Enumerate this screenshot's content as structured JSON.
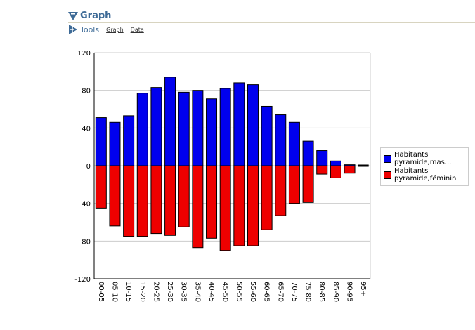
{
  "header": {
    "title": "Graph",
    "tools_label": "Tools",
    "links": [
      "Graph",
      "Data"
    ]
  },
  "chart_data": {
    "type": "bar",
    "categories": [
      "00-05",
      "05-10",
      "10-15",
      "15-20",
      "20-25",
      "25-30",
      "30-35",
      "35-40",
      "40-45",
      "45-50",
      "50-55",
      "55-60",
      "60-65",
      "65-70",
      "70-75",
      "75-80",
      "80-85",
      "85-90",
      "90-95",
      "95+"
    ],
    "series": [
      {
        "name": "Habitants pyramide,mas...",
        "color": "#0000ee",
        "values": [
          51,
          46,
          53,
          77,
          83,
          94,
          78,
          80,
          71,
          82,
          88,
          86,
          63,
          54,
          46,
          26,
          16,
          5,
          1,
          0
        ]
      },
      {
        "name": "Habitants pyramide,féminin",
        "color": "#ee0000",
        "values": [
          -45,
          -64,
          -75,
          -75,
          -72,
          -74,
          -65,
          -87,
          -77,
          -90,
          -85,
          -85,
          -68,
          -53,
          -40,
          -39,
          -9,
          -13,
          -8,
          0
        ]
      }
    ],
    "ylim": [
      -120,
      120
    ],
    "yticks": [
      "120",
      "80",
      "40",
      "0",
      "-40",
      "-80",
      "-120"
    ],
    "grid": true,
    "legend": "right",
    "stacked": true
  }
}
